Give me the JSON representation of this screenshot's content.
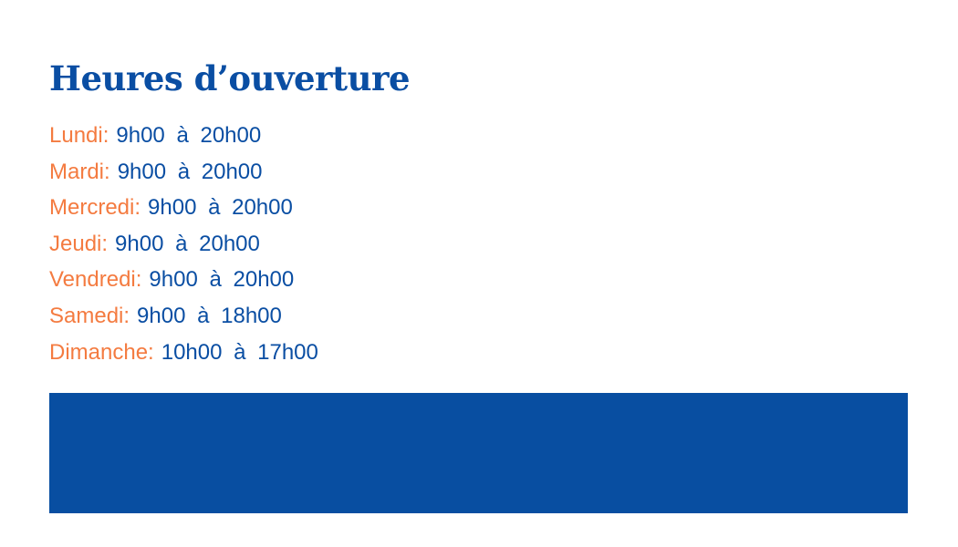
{
  "title": "Heures d’ouverture",
  "hours": [
    {
      "day": "Lundi:",
      "time": "9h00 à 20h00"
    },
    {
      "day": "Mardi:",
      "time": "9h00 à 20h00"
    },
    {
      "day": "Mercredi:",
      "time": "9h00 à 20h00"
    },
    {
      "day": "Jeudi:",
      "time": "9h00 à 20h00"
    },
    {
      "day": "Vendredi:",
      "time": "9h00 à 20h00"
    },
    {
      "day": "Samedi:",
      "time": "9h00 à 18h00"
    },
    {
      "day": "Dimanche:",
      "time": "10h00 à 17h00"
    }
  ],
  "colors": {
    "primary": "#0a4ea3",
    "accent": "#f47b40",
    "banner": "#084ea1"
  }
}
